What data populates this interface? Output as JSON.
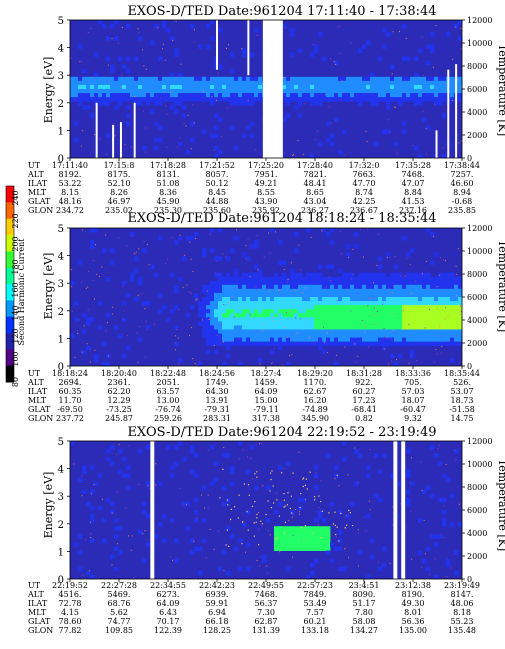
{
  "colorbar": {
    "label": "Second Harmonic Current",
    "ticks": [
      "240",
      "220",
      "200",
      "180",
      "160",
      "140",
      "120",
      "100",
      "80"
    ],
    "colors": [
      "#ff0000",
      "#ff6600",
      "#ffcc00",
      "#ccff00",
      "#33ff33",
      "#00ff99",
      "#00ffff",
      "#0099ff",
      "#0033ff",
      "#2222aa",
      "#550088",
      "#000000"
    ]
  },
  "colors": {
    "background_noise": "#2b2bb8",
    "band_outer": "#2233ee",
    "band_inner": "#1f8cff",
    "band_peak": "#33d8ff",
    "hot_core": "#22ff66",
    "core_yellow": "#aaff22",
    "dots": "#ff7f50",
    "trace": "#ffffff"
  },
  "chart_data": [
    {
      "type": "heatmap",
      "title": "EXOS-D/TED   Date:961204   17:11:40 - 17:38:44",
      "ylabel": "Energy [eV]",
      "y2label": "Temperature [K]",
      "ylim": [
        0,
        5
      ],
      "y2lim": [
        0,
        12000
      ],
      "yticks": [
        "0",
        "1",
        "2",
        "3",
        "4",
        "5"
      ],
      "y2ticks": [
        "0",
        "2000",
        "4000",
        "6000",
        "8000",
        "10000",
        "12000"
      ],
      "gaps": [
        [
          0.492,
          0.543
        ]
      ],
      "band": {
        "low": 1.9,
        "high": 3.0,
        "peak": 2.6,
        "intensity": 0.55,
        "start": 0.0,
        "end": 1.0
      },
      "core": null,
      "temperature_spikes": [
        {
          "x": 0.068,
          "low": 0,
          "high": 2.0
        },
        {
          "x": 0.11,
          "low": 0,
          "high": 1.2
        },
        {
          "x": 0.13,
          "low": 0,
          "high": 1.3
        },
        {
          "x": 0.165,
          "low": 0,
          "high": 2.0
        },
        {
          "x": 0.455,
          "low": 3.0,
          "high": 5.0
        },
        {
          "x": 0.375,
          "low": 3.2,
          "high": 5.0
        },
        {
          "x": 0.935,
          "low": 0,
          "high": 1.0
        },
        {
          "x": 0.965,
          "low": 0,
          "high": 3.2
        },
        {
          "x": 0.985,
          "low": 0,
          "high": 3.4
        }
      ],
      "table": {
        "rows": [
          {
            "label": "UT",
            "values": [
              "17:11:40",
              "17:15:8",
              "17:18:28",
              "17:21:52",
              "17:25:20",
              "17:28:40",
              "17:32:0",
              "17:35:28",
              "17:38:44"
            ]
          },
          {
            "label": "ALT",
            "values": [
              "8192.",
              "8175.",
              "8131.",
              "8057.",
              "7951.",
              "7821.",
              "7663.",
              "7468.",
              "7257."
            ]
          },
          {
            "label": "ILAT",
            "values": [
              "53.22",
              "52.10",
              "51.08",
              "50.12",
              "49.21",
              "48.41",
              "47.70",
              "47.07",
              "46.60"
            ]
          },
          {
            "label": "MLT",
            "values": [
              "8.15",
              "8.26",
              "8.36",
              "8.45",
              "8.55",
              "8.65",
              "8.74",
              "8.84",
              "8.94"
            ]
          },
          {
            "label": "GLAT",
            "values": [
              "48.16",
              "46.97",
              "45.90",
              "44.88",
              "43.90",
              "43.04",
              "42.25",
              "41.53",
              "-0.68"
            ]
          },
          {
            "label": "GLON",
            "values": [
              "234.72",
              "235.02",
              "235.30",
              "235.60",
              "235.92",
              "236.27",
              "236.67",
              "237.16",
              "235.85"
            ]
          }
        ]
      }
    },
    {
      "type": "heatmap",
      "title": "EXOS-D/TED   Date:961204   18:18:24 - 18:35:44",
      "ylabel": "Energy [eV]",
      "y2label": "Temperature [K]",
      "ylim": [
        0,
        5
      ],
      "y2lim": [
        0,
        12000
      ],
      "yticks": [
        "0",
        "1",
        "2",
        "3",
        "4",
        "5"
      ],
      "y2ticks": [
        "0",
        "2000",
        "4000",
        "6000",
        "8000",
        "10000",
        "12000"
      ],
      "gaps": [],
      "band": {
        "low": 0.7,
        "high": 3.4,
        "peak": 1.9,
        "intensity": 0.8,
        "start": 0.33,
        "end": 1.0
      },
      "core": {
        "low": 1.3,
        "high": 2.2,
        "start": 0.62,
        "end": 1.0
      },
      "temperature_spikes": [],
      "table": {
        "rows": [
          {
            "label": "UT",
            "values": [
              "18:18:24",
              "18:20:40",
              "18:22:48",
              "18:24:56",
              "18:27:4",
              "18:29:20",
              "18:31:28",
              "18:33:36",
              "18:35:44"
            ]
          },
          {
            "label": "ALT",
            "values": [
              "2694.",
              "2361.",
              "2051.",
              "1749.",
              "1459.",
              "1170.",
              "922.",
              "705.",
              "526."
            ]
          },
          {
            "label": "ILAT",
            "values": [
              "60.35",
              "62.20",
              "63.57",
              "64.30",
              "64.09",
              "62.67",
              "60.27",
              "57.03",
              "53.07"
            ]
          },
          {
            "label": "MLT",
            "values": [
              "11.70",
              "12.29",
              "13.00",
              "13.91",
              "15.00",
              "16.20",
              "17.23",
              "18.07",
              "18.73"
            ]
          },
          {
            "label": "GLAT",
            "values": [
              "-69.50",
              "-73.25",
              "-76.74",
              "-79.31",
              "-79.11",
              "-74.89",
              "-68.41",
              "-60.47",
              "-51.58"
            ]
          },
          {
            "label": "GLON",
            "values": [
              "237.72",
              "245.87",
              "259.26",
              "283.31",
              "317.38",
              "345.90",
              "0.82",
              "9.32",
              "14.75"
            ]
          }
        ]
      }
    },
    {
      "type": "heatmap",
      "title": "EXOS-D/TED   Date:961204   22:19:52 - 23:19:49",
      "ylabel": "Energy [eV]",
      "y2label": "Temperature [K]",
      "ylim": [
        0,
        5
      ],
      "y2lim": [
        0,
        12000
      ],
      "yticks": [
        "0",
        "1",
        "2",
        "3",
        "4",
        "5"
      ],
      "y2ticks": [
        "0",
        "2000",
        "4000",
        "6000",
        "8000",
        "10000",
        "12000"
      ],
      "gaps": [
        [
          0.205,
          0.215
        ],
        [
          0.825,
          0.835
        ],
        [
          0.845,
          0.855
        ]
      ],
      "band": null,
      "core": {
        "low": 1.1,
        "high": 1.9,
        "start": 0.52,
        "end": 0.66
      },
      "temperature_spikes": [],
      "table": {
        "rows": [
          {
            "label": "UT",
            "values": [
              "22:19:52",
              "22:27:28",
              "22:34:55",
              "22:42:23",
              "22:49:55",
              "22:57:23",
              "23:4:51",
              "23:12:38",
              "23:19:49"
            ]
          },
          {
            "label": "ALT",
            "values": [
              "4516.",
              "5469.",
              "6273.",
              "6939.",
              "7468.",
              "7849.",
              "8090.",
              "8190.",
              "8147."
            ]
          },
          {
            "label": "ILAT",
            "values": [
              "72.78",
              "68.76",
              "64.09",
              "59.91",
              "56.37",
              "53.49",
              "51.17",
              "49.30",
              "48.06"
            ]
          },
          {
            "label": "MLT",
            "values": [
              "4.15",
              "5.62",
              "6.43",
              "6.94",
              "7.30",
              "7.57",
              "7.80",
              "8.01",
              "8.18"
            ]
          },
          {
            "label": "GLAT",
            "values": [
              "78.60",
              "74.77",
              "70.17",
              "66.18",
              "62.87",
              "60.21",
              "58.08",
              "56.36",
              "55.23"
            ]
          },
          {
            "label": "GLON",
            "values": [
              "77.82",
              "109.85",
              "122.39",
              "128.25",
              "131.39",
              "133.18",
              "134.27",
              "135.00",
              "135.48"
            ]
          }
        ]
      }
    }
  ]
}
